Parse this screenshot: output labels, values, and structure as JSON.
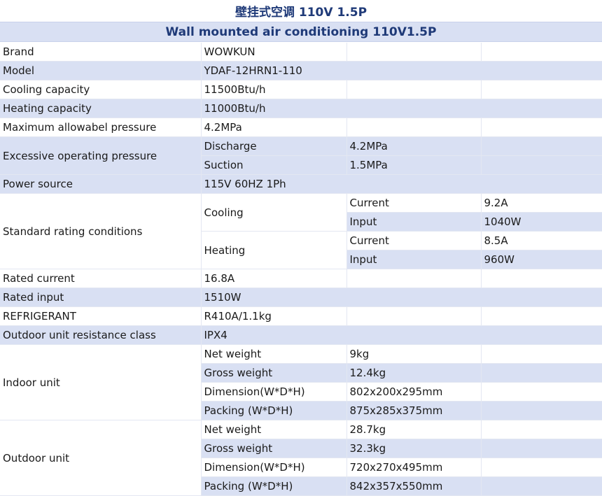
{
  "title_cn": "壁挂式空调 110V 1.5P",
  "title_en": "Wall mounted air conditioning 110V1.5P",
  "rows": {
    "brand": {
      "label": "Brand",
      "value": "WOWKUN"
    },
    "model": {
      "label": "Model",
      "value": "YDAF-12HRN1-110"
    },
    "cooling_capacity": {
      "label": "Cooling capacity",
      "value": "11500Btu/h"
    },
    "heating_capacity": {
      "label": "Heating capacity",
      "value": "11000Btu/h"
    },
    "max_pressure": {
      "label": "Maximum allowabel pressure",
      "value": "4.2MPa"
    },
    "excessive_pressure": {
      "label": "Excessive operating pressure",
      "discharge_label": "Discharge",
      "discharge_value": "4.2MPa",
      "suction_label": "Suction",
      "suction_value": "1.5MPa"
    },
    "power_source": {
      "label": "Power source",
      "value": "115V 60HZ 1Ph"
    },
    "standard_rating": {
      "label": "Standard rating conditions",
      "cooling": {
        "label": "Cooling",
        "current_label": "Current",
        "current_value": "9.2A",
        "input_label": "Input",
        "input_value": "1040W"
      },
      "heating": {
        "label": "Heating",
        "current_label": "Current",
        "current_value": "8.5A",
        "input_label": "Input",
        "input_value": "960W"
      }
    },
    "rated_current": {
      "label": "Rated current",
      "value": "16.8A"
    },
    "rated_input": {
      "label": "Rated input",
      "value": "1510W"
    },
    "refrigerant": {
      "label": "REFRIGERANT",
      "value": "R410A/1.1kg"
    },
    "resistance_class": {
      "label": "Outdoor unit resistance class",
      "value": "IPX4"
    },
    "indoor_unit": {
      "label": "Indoor unit",
      "net_weight_label": "Net weight",
      "net_weight": "9kg",
      "gross_weight_label": "Gross weight",
      "gross_weight": "12.4kg",
      "dimension_label": "Dimension(W*D*H)",
      "dimension": "802x200x295mm",
      "packing_label": "Packing (W*D*H)",
      "packing": "875x285x375mm"
    },
    "outdoor_unit": {
      "label": "Outdoor unit",
      "net_weight_label": "Net weight",
      "net_weight": "28.7kg",
      "gross_weight_label": "Gross weight",
      "gross_weight": "32.3kg",
      "dimension_label": "Dimension(W*D*H)",
      "dimension": "720x270x495mm",
      "packing_label": "Packing (W*D*H)",
      "packing": "842x357x550mm"
    }
  }
}
